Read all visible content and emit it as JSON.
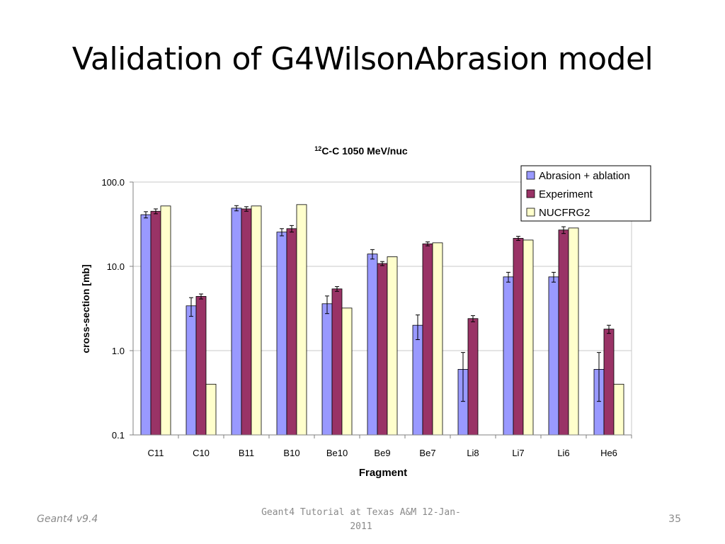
{
  "slide": {
    "title": "Validation of G4WilsonAbrasion model",
    "footer_left": "Geant4 v9.4",
    "footer_center": "Geant4 Tutorial at Texas A&M 12-Jan-2011",
    "page_number": "35"
  },
  "chart_data": {
    "type": "bar",
    "title_superscript": "12",
    "title": "C-C 1050 MeV/nuc",
    "xlabel": "Fragment",
    "ylabel": "cross-section [mb]",
    "yscale": "log",
    "ylim": [
      0.1,
      100
    ],
    "yticks": [
      0.1,
      1.0,
      10.0,
      100.0
    ],
    "ytick_labels": [
      "0.1",
      "1.0",
      "10.0",
      "100.0"
    ],
    "grid": true,
    "legend_position": "top-right",
    "categories": [
      "C11",
      "C10",
      "B11",
      "B10",
      "Be10",
      "Be9",
      "Be7",
      "Li8",
      "Li7",
      "Li6",
      "He6"
    ],
    "series": [
      {
        "name": "Abrasion + ablation",
        "color": "#9999ff",
        "values": [
          41,
          3.4,
          49,
          25.5,
          3.6,
          14,
          2.0,
          0.6,
          7.5,
          7.5,
          0.6
        ],
        "errors": [
          3.5,
          0.85,
          3.5,
          2.5,
          0.85,
          1.8,
          0.65,
          0.35,
          1.0,
          1.0,
          0.35
        ]
      },
      {
        "name": "Experiment",
        "color": "#993366",
        "values": [
          45,
          4.4,
          48,
          28,
          5.4,
          10.8,
          18.5,
          2.4,
          21.5,
          27,
          1.8
        ],
        "errors": [
          3.0,
          0.3,
          3.0,
          2.5,
          0.35,
          0.6,
          1.0,
          0.2,
          1.2,
          2.5,
          0.2
        ]
      },
      {
        "name": "NUCFRG2",
        "color": "#ffffcc",
        "values": [
          52,
          0.4,
          52,
          54,
          3.2,
          13,
          19,
          null,
          20.5,
          28.5,
          0.4
        ],
        "errors": [
          null,
          null,
          null,
          null,
          null,
          null,
          null,
          null,
          null,
          null,
          null
        ]
      }
    ]
  }
}
